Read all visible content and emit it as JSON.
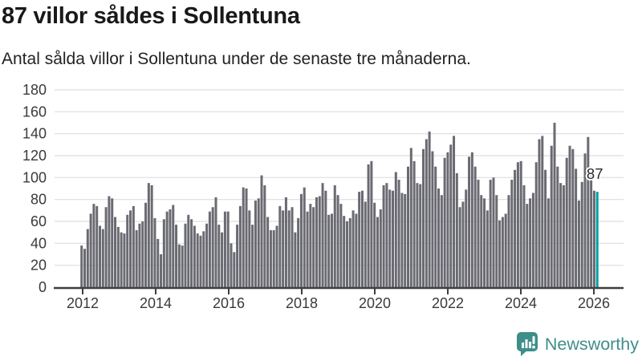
{
  "header": {
    "title": "87 villor såldes i Sollentuna",
    "subtitle": "Antal sålda villor i Sollentuna under de senaste tre månaderna."
  },
  "chart_data": {
    "type": "bar",
    "title": "87 villor såldes i Sollentuna",
    "subtitle": "Antal sålda villor i Sollentuna under de senaste tre månaderna.",
    "x_start": "2012-01",
    "x_end": "2026-02",
    "x_tick_labels": [
      "2012",
      "2014",
      "2016",
      "2018",
      "2020",
      "2022",
      "2024",
      "2026"
    ],
    "y_tick_labels": [
      "0",
      "20",
      "40",
      "60",
      "80",
      "100",
      "120",
      "140",
      "160",
      "180"
    ],
    "ylim": [
      0,
      180
    ],
    "grid": true,
    "legend": "none",
    "bar_color": "#6a6a72",
    "highlight_color": "#00a1a1",
    "axis_color": "#3f3f3f",
    "gridline_color": "#dedede",
    "tick_label_color": "#3a3a3a",
    "annotation": {
      "text": "87",
      "value": 87,
      "bar_index": 169
    },
    "values": [
      38,
      35,
      53,
      67,
      76,
      74,
      56,
      53,
      73,
      83,
      81,
      64,
      55,
      50,
      49,
      66,
      70,
      74,
      52,
      58,
      60,
      77,
      95,
      93,
      63,
      44,
      30,
      62,
      69,
      71,
      75,
      57,
      39,
      38,
      58,
      66,
      62,
      56,
      49,
      47,
      51,
      58,
      69,
      73,
      82,
      57,
      50,
      69,
      69,
      40,
      32,
      57,
      74,
      91,
      90,
      70,
      57,
      79,
      81,
      102,
      93,
      64,
      52,
      52,
      56,
      74,
      70,
      82,
      70,
      73,
      50,
      63,
      85,
      91,
      69,
      76,
      73,
      82,
      83,
      95,
      88,
      66,
      67,
      93,
      84,
      76,
      65,
      60,
      63,
      70,
      67,
      87,
      88,
      78,
      112,
      115,
      77,
      64,
      71,
      93,
      95,
      89,
      88,
      105,
      98,
      86,
      85,
      110,
      127,
      115,
      95,
      94,
      126,
      135,
      142,
      124,
      110,
      90,
      84,
      118,
      123,
      130,
      138,
      104,
      73,
      78,
      89,
      119,
      123,
      110,
      98,
      84,
      81,
      70,
      98,
      100,
      84,
      61,
      64,
      67,
      84,
      98,
      107,
      114,
      115,
      93,
      76,
      81,
      86,
      114,
      135,
      138,
      107,
      81,
      129,
      150,
      110,
      95,
      93,
      118,
      129,
      126,
      108,
      79,
      96,
      122,
      137,
      105,
      88,
      87
    ]
  },
  "footer": {
    "brand": "Newsworthy",
    "brand_color": "#3e8e8b"
  }
}
